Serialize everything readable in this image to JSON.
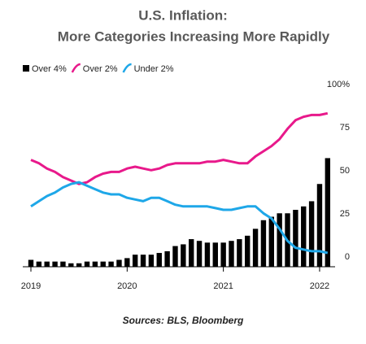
{
  "chart_data": {
    "type": "bar",
    "title": "U.S. Inflation:",
    "subtitle": "More Categories Increasing More Rapidly",
    "source": "Sources: BLS, Bloomberg",
    "categories": [
      "2019",
      null,
      null,
      null,
      null,
      null,
      null,
      null,
      null,
      null,
      null,
      null,
      "2020",
      null,
      null,
      null,
      null,
      null,
      null,
      null,
      null,
      null,
      null,
      null,
      "2021",
      null,
      null,
      null,
      null,
      null,
      null,
      null,
      null,
      null,
      null,
      null,
      "2022",
      null
    ],
    "series": [
      {
        "name": "Over 4%",
        "type": "bar",
        "color": "#000000",
        "values": [
          4,
          3,
          3,
          3,
          3,
          2,
          2,
          3,
          3,
          3,
          3,
          4,
          5,
          7,
          7,
          7,
          8,
          9,
          12,
          13,
          16,
          15,
          14,
          14,
          14,
          15,
          16,
          18,
          22,
          27,
          29,
          31,
          31,
          33,
          35,
          38,
          48,
          63
        ]
      },
      {
        "name": "Over 2%",
        "type": "line",
        "color": "#e8198b",
        "values": [
          62,
          60,
          57,
          55,
          52,
          50,
          48,
          49,
          52,
          54,
          55,
          55,
          57,
          58,
          57,
          56,
          57,
          59,
          60,
          60,
          60,
          60,
          61,
          61,
          62,
          61,
          60,
          60,
          64,
          67,
          70,
          74,
          80,
          85,
          87,
          88,
          88,
          89
        ]
      },
      {
        "name": "Under 2%",
        "type": "line",
        "color": "#1ea7e8",
        "values": [
          35,
          38,
          41,
          43,
          46,
          48,
          49,
          47,
          45,
          43,
          42,
          42,
          40,
          39,
          38,
          40,
          40,
          38,
          36,
          35,
          35,
          35,
          35,
          34,
          33,
          33,
          34,
          35,
          35,
          31,
          28,
          22,
          15,
          11,
          10,
          9,
          9,
          8
        ]
      }
    ],
    "ylim": [
      0,
      100
    ],
    "yticks": [
      0,
      25,
      50,
      75,
      {
        "value": 100,
        "label": "100%"
      }
    ]
  }
}
